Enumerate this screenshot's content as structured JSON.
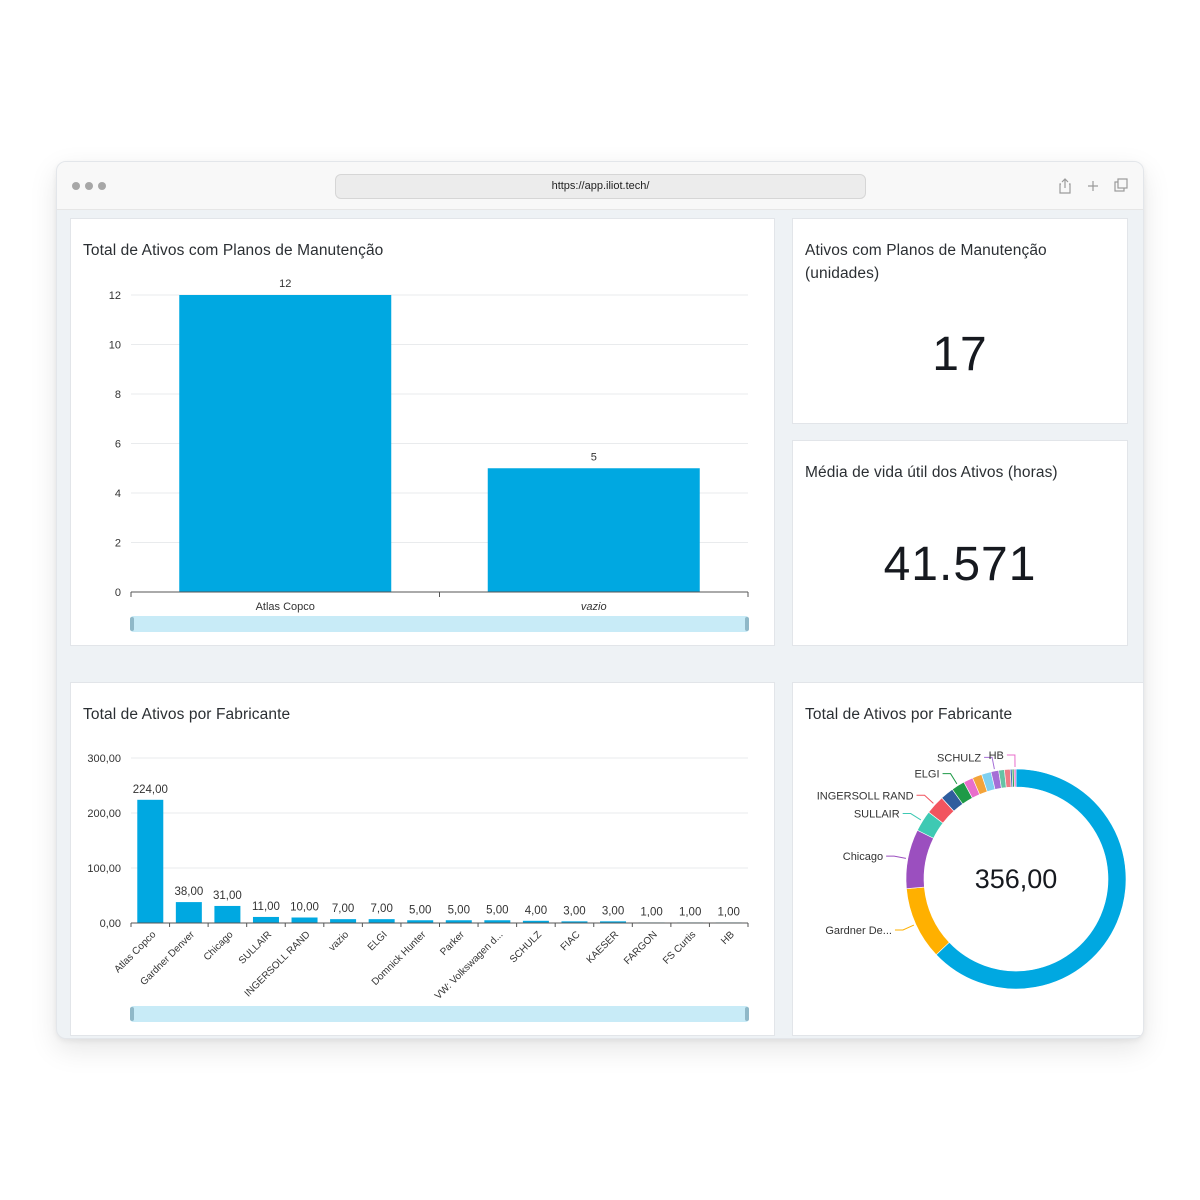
{
  "browser": {
    "url": "https://app.iliot.tech/",
    "share_icon": "share-icon",
    "new_tab_icon": "plus-icon",
    "tabs_icon": "tabs-icon"
  },
  "colors": {
    "bar": "#00a8e1",
    "grid": "#e9ebed",
    "scrollbar": "#c8ebf7"
  },
  "cards": {
    "maintenance_chart": {
      "title": "Total de Ativos com Planos de Manutenção"
    },
    "kpi_assets": {
      "title": "Ativos com Planos de Manutenção (unidades)",
      "value": "17"
    },
    "kpi_life": {
      "title": "Média de vida útil dos Ativos (horas)",
      "value": "41.571"
    },
    "manufacturer_bar": {
      "title": "Total de Ativos por Fabricante"
    },
    "manufacturer_donut": {
      "title": "Total de Ativos por Fabricante",
      "center_value": "356,00"
    }
  },
  "chart_data": [
    {
      "type": "bar",
      "title": "Total de Ativos com Planos de Manutenção",
      "categories": [
        "Atlas Copco",
        "vazio"
      ],
      "values": [
        12,
        5
      ],
      "value_labels": [
        "12",
        "5"
      ],
      "ylim": [
        0,
        12
      ],
      "yticks": [
        "0",
        "2",
        "4",
        "6",
        "8",
        "10",
        "12"
      ],
      "grid": true
    },
    {
      "type": "bar",
      "title": "Total de Ativos por Fabricante",
      "categories": [
        "Atlas Copco",
        "Gardner Denver",
        "Chicago",
        "SULLAIR",
        "INGERSOLL RAND",
        "vazio",
        "ELGI",
        "Domnick Hunter",
        "Parker",
        "VW: Volkswagen d...",
        "SCHULZ",
        "FIAC",
        "KAESER",
        "FARGON",
        "FS Curtis",
        "HB"
      ],
      "values": [
        224,
        38,
        31,
        11,
        10,
        7,
        7,
        5,
        5,
        5,
        4,
        3,
        3,
        1,
        1,
        1
      ],
      "value_labels": [
        "224,00",
        "38,00",
        "31,00",
        "11,00",
        "10,00",
        "7,00",
        "7,00",
        "5,00",
        "5,00",
        "5,00",
        "4,00",
        "3,00",
        "3,00",
        "1,00",
        "1,00",
        "1,00"
      ],
      "ylim": [
        0,
        300
      ],
      "yticks": [
        "0,00",
        "100,00",
        "200,00",
        "300,00"
      ],
      "grid": true
    },
    {
      "type": "pie",
      "title": "Total de Ativos por Fabricante",
      "center_label": "356,00",
      "slices": [
        {
          "label": "Atlas Copco",
          "value": 224,
          "color": "#00a8e1",
          "shown_label": ""
        },
        {
          "label": "Gardner De...",
          "value": 38,
          "color": "#ffb000",
          "shown_label": "Gardner De..."
        },
        {
          "label": "Chicago",
          "value": 31,
          "color": "#9b4fbf",
          "shown_label": "Chicago"
        },
        {
          "label": "SULLAIR",
          "value": 11,
          "color": "#3ec9b3",
          "shown_label": "SULLAIR"
        },
        {
          "label": "INGERSOLL RAND",
          "value": 10,
          "color": "#f2545f",
          "shown_label": "INGERSOLL RAND"
        },
        {
          "label": "vazio",
          "value": 7,
          "color": "#2f5d9e",
          "shown_label": ""
        },
        {
          "label": "ELGI",
          "value": 7,
          "color": "#1e9a47",
          "shown_label": "ELGI"
        },
        {
          "label": "Domnick Hunter",
          "value": 5,
          "color": "#e86ecb",
          "shown_label": ""
        },
        {
          "label": "Parker",
          "value": 5,
          "color": "#f3a33a",
          "shown_label": ""
        },
        {
          "label": "VW: Volkswagen d...",
          "value": 5,
          "color": "#7fd0f0",
          "shown_label": ""
        },
        {
          "label": "SCHULZ",
          "value": 4,
          "color": "#a56fd6",
          "shown_label": "SCHULZ"
        },
        {
          "label": "FIAC",
          "value": 3,
          "color": "#66c2a5",
          "shown_label": ""
        },
        {
          "label": "KAESER",
          "value": 3,
          "color": "#ef7b86",
          "shown_label": ""
        },
        {
          "label": "FARGON",
          "value": 1,
          "color": "#4b72b8",
          "shown_label": ""
        },
        {
          "label": "FS Curtis",
          "value": 1,
          "color": "#34a853",
          "shown_label": ""
        },
        {
          "label": "HB",
          "value": 1,
          "color": "#e86ecb",
          "shown_label": "HB"
        }
      ]
    }
  ]
}
